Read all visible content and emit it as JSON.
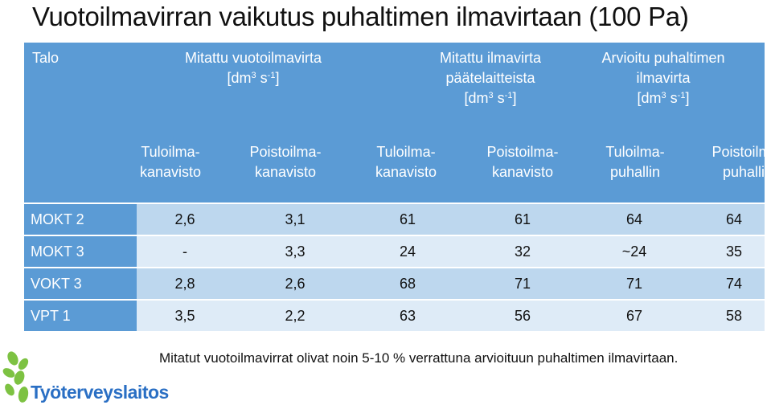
{
  "title": "Vuotoilmavirran vaikutus puhaltimen ilmavirtaan (100 Pa)",
  "header": {
    "talo": "Talo",
    "group1": {
      "line1": "Mitattu vuotoilmavirta",
      "unit_pre": "[dm",
      "unit_mid": " s",
      "unit_post": "]",
      "sup1": "3",
      "sup2": "-1"
    },
    "group2": {
      "line1": "Mitattu ilmavirta",
      "line2": "päätelaitteista",
      "unit_pre": "[dm",
      "unit_mid": " s",
      "unit_post": "]",
      "sup1": "3",
      "sup2": "-1"
    },
    "group3": {
      "line1": "Arvioitu puhaltimen",
      "line2": "ilmavirta",
      "unit_pre": "[dm",
      "unit_mid": " s",
      "unit_post": "]",
      "sup1": "3",
      "sup2": "-1"
    },
    "sub": [
      {
        "l1": "Tuloilma-",
        "l2": "kanavisto"
      },
      {
        "l1": "Poistoilma-",
        "l2": "kanavisto"
      },
      {
        "l1": "Tuloilma-",
        "l2": "kanavisto"
      },
      {
        "l1": "Poistoilma-",
        "l2": "kanavisto"
      },
      {
        "l1": "Tuloilma-",
        "l2": "puhallin"
      },
      {
        "l1": "Poistoilma-",
        "l2": "puhallin"
      }
    ]
  },
  "rows": [
    {
      "label": "MOKT 2",
      "v": [
        "2,6",
        "3,1",
        "61",
        "61",
        "64",
        "64"
      ]
    },
    {
      "label": "MOKT 3",
      "v": [
        "-",
        "3,3",
        "24",
        "32",
        "~24",
        "35"
      ]
    },
    {
      "label": "VOKT 3",
      "v": [
        "2,8",
        "2,6",
        "68",
        "71",
        "71",
        "74"
      ]
    },
    {
      "label": "VPT 1",
      "v": [
        "3,5",
        "2,2",
        "63",
        "56",
        "67",
        "58"
      ]
    }
  ],
  "note": "Mitatut vuotoilmavirrat olivat noin 5-10 % verrattuna arvioituun puhaltimen ilmavirtaan.",
  "logo": {
    "text": "Työterveyslaitos"
  },
  "colors": {
    "header": "#5b9bd5",
    "row_dark": "#bdd7ee",
    "row_light": "#deebf7",
    "logo_green": "#7dc242",
    "logo_blue": "#2a6fc4"
  }
}
